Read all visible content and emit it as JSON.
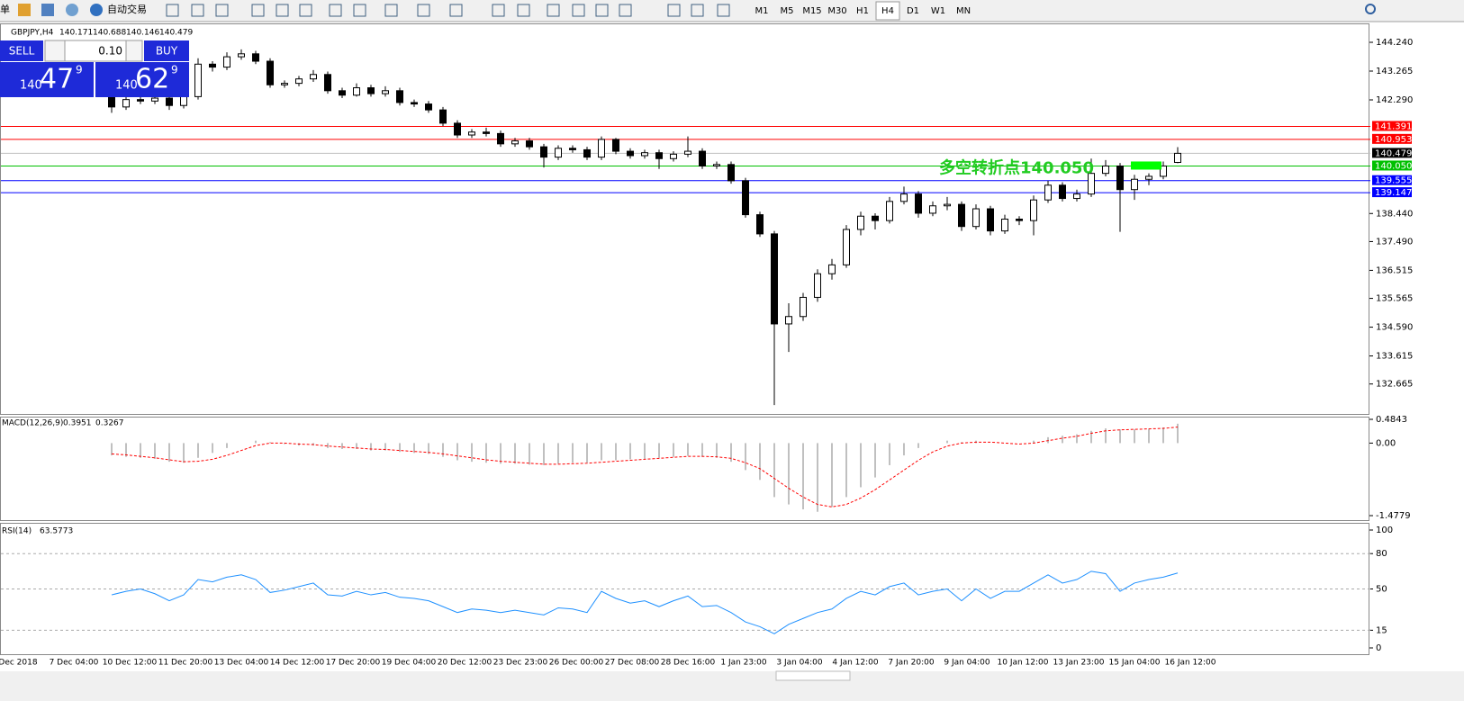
{
  "toolbar": {
    "left_text": "单",
    "auto_trading": "自动交易",
    "timeframes": [
      "M1",
      "M5",
      "M15",
      "M30",
      "H1",
      "H4",
      "D1",
      "W1",
      "MN"
    ],
    "active_timeframe": "H4"
  },
  "trade_panel": {
    "sell": "SELL",
    "lot": "0.10",
    "buy": "BUY",
    "sell_price": {
      "big": "140",
      "main": "47",
      "pip": "9"
    },
    "buy_price": {
      "big": "140",
      "main": "62",
      "pip": "9"
    }
  },
  "chart_data": [
    {
      "type": "candlestick",
      "symbol": "GBPJPY,H4",
      "header_values": [
        140.171,
        140.688,
        140.146,
        140.479
      ],
      "up_color": "#ffffff",
      "down_color": "#000000",
      "ylim": [
        131.65,
        144.82
      ],
      "yticks": [
        {
          "value": 144.24,
          "label": "144.240"
        },
        {
          "value": 143.265,
          "label": "143.265"
        },
        {
          "value": 142.29,
          "label": "142.290"
        },
        {
          "value": 138.44,
          "label": "138.440"
        },
        {
          "value": 137.49,
          "label": "137.490"
        },
        {
          "value": 136.515,
          "label": "136.515"
        },
        {
          "value": 135.565,
          "label": "135.565"
        },
        {
          "value": 134.59,
          "label": "134.590"
        },
        {
          "value": 133.615,
          "label": "133.615"
        },
        {
          "value": 132.665,
          "label": "132.665"
        }
      ],
      "levels": [
        {
          "value": 141.391,
          "color": "#ff0000"
        },
        {
          "value": 140.953,
          "color": "#ff0000"
        },
        {
          "value": 140.479,
          "color": "#c0c0c0",
          "label_color": "#000000"
        },
        {
          "value": 140.05,
          "label": "140.050",
          "color": "#00c000"
        },
        {
          "value": 139.555,
          "color": "#0000ff"
        },
        {
          "value": 139.147,
          "color": "#0000ff"
        }
      ],
      "annotation": "多空转折点140.050",
      "annotation_color": "#22cc22",
      "candles": [
        [
          142.55,
          142.65,
          141.85,
          142.05
        ],
        [
          142.05,
          142.4,
          141.95,
          142.3
        ],
        [
          142.3,
          142.4,
          142.15,
          142.25
        ],
        [
          142.25,
          142.45,
          142.15,
          142.35
        ],
        [
          142.35,
          142.45,
          141.95,
          142.1
        ],
        [
          142.1,
          142.55,
          142,
          142.4
        ],
        [
          142.4,
          143.7,
          142.3,
          143.5
        ],
        [
          143.5,
          143.6,
          143.25,
          143.4
        ],
        [
          143.4,
          143.9,
          143.3,
          143.75
        ],
        [
          143.75,
          144,
          143.65,
          143.85
        ],
        [
          143.85,
          143.95,
          143.5,
          143.6
        ],
        [
          143.6,
          143.7,
          142.7,
          142.8
        ],
        [
          142.8,
          142.95,
          142.7,
          142.85
        ],
        [
          142.85,
          143.1,
          142.75,
          143
        ],
        [
          143,
          143.3,
          142.9,
          143.15
        ],
        [
          143.15,
          143.25,
          142.5,
          142.6
        ],
        [
          142.6,
          142.7,
          142.35,
          142.45
        ],
        [
          142.45,
          142.85,
          142.4,
          142.7
        ],
        [
          142.7,
          142.8,
          142.4,
          142.5
        ],
        [
          142.5,
          142.75,
          142.4,
          142.6
        ],
        [
          142.6,
          142.7,
          142.1,
          142.2
        ],
        [
          142.2,
          142.3,
          142.05,
          142.15
        ],
        [
          142.15,
          142.25,
          141.85,
          141.95
        ],
        [
          141.95,
          142.05,
          141.4,
          141.5
        ],
        [
          141.5,
          141.6,
          141,
          141.1
        ],
        [
          141.1,
          141.3,
          141,
          141.2
        ],
        [
          141.2,
          141.35,
          141.05,
          141.15
        ],
        [
          141.15,
          141.25,
          140.7,
          140.8
        ],
        [
          140.8,
          141,
          140.7,
          140.9
        ],
        [
          140.9,
          141,
          140.6,
          140.7
        ],
        [
          140.7,
          140.8,
          140,
          140.35
        ],
        [
          140.35,
          140.75,
          140.25,
          140.65
        ],
        [
          140.65,
          140.75,
          140.5,
          140.6
        ],
        [
          140.6,
          140.7,
          140.25,
          140.35
        ],
        [
          140.35,
          141.05,
          140.25,
          140.95
        ],
        [
          140.95,
          141,
          140.45,
          140.55
        ],
        [
          140.55,
          140.65,
          140.3,
          140.4
        ],
        [
          140.4,
          140.6,
          140.3,
          140.5
        ],
        [
          140.5,
          140.6,
          139.95,
          140.3
        ],
        [
          140.3,
          140.55,
          140.2,
          140.45
        ],
        [
          140.45,
          141.05,
          140.35,
          140.55
        ],
        [
          140.55,
          140.65,
          139.95,
          140.05
        ],
        [
          140.05,
          140.2,
          139.95,
          140.1
        ],
        [
          140.1,
          140.2,
          139.45,
          139.55
        ],
        [
          139.55,
          139.65,
          138.3,
          138.4
        ],
        [
          138.4,
          138.5,
          137.65,
          137.75
        ],
        [
          137.75,
          137.85,
          131.95,
          134.7
        ],
        [
          134.7,
          135.4,
          133.75,
          134.95
        ],
        [
          134.95,
          135.75,
          134.8,
          135.6
        ],
        [
          135.6,
          136.55,
          135.45,
          136.4
        ],
        [
          136.4,
          136.9,
          136.2,
          136.7
        ],
        [
          136.7,
          138.05,
          136.6,
          137.9
        ],
        [
          137.9,
          138.5,
          137.7,
          138.35
        ],
        [
          138.35,
          138.45,
          137.9,
          138.2
        ],
        [
          138.2,
          139,
          138.1,
          138.85
        ],
        [
          138.85,
          139.35,
          138.75,
          139.1
        ],
        [
          139.1,
          139.2,
          138.3,
          138.45
        ],
        [
          138.45,
          138.85,
          138.35,
          138.7
        ],
        [
          138.7,
          139,
          138.55,
          138.75
        ],
        [
          138.75,
          138.85,
          137.85,
          138
        ],
        [
          138,
          138.75,
          137.9,
          138.6
        ],
        [
          138.6,
          138.7,
          137.7,
          137.85
        ],
        [
          137.85,
          138.4,
          137.75,
          138.25
        ],
        [
          138.25,
          138.35,
          138.05,
          138.2
        ],
        [
          138.2,
          139.05,
          137.7,
          138.9
        ],
        [
          138.9,
          139.55,
          138.8,
          139.4
        ],
        [
          139.4,
          139.5,
          138.85,
          138.95
        ],
        [
          138.95,
          139.25,
          138.85,
          139.1
        ],
        [
          139.1,
          140.3,
          139,
          139.8
        ],
        [
          139.8,
          140.25,
          139.7,
          140.05
        ],
        [
          140.05,
          140.15,
          137.82,
          139.25
        ],
        [
          139.25,
          139.75,
          138.9,
          139.6
        ],
        [
          139.6,
          139.8,
          139.4,
          139.7
        ],
        [
          139.7,
          140.2,
          139.6,
          140.05
        ],
        [
          140.171,
          140.688,
          140.146,
          140.479
        ]
      ],
      "time_labels": [
        "Dec 2018",
        "7 Dec 04:00",
        "10 Dec 12:00",
        "11 Dec 20:00",
        "13 Dec 04:00",
        "14 Dec 12:00",
        "17 Dec 20:00",
        "19 Dec 04:00",
        "20 Dec 12:00",
        "23 Dec 23:00",
        "26 Dec 00:00",
        "27 Dec 08:00",
        "28 Dec 16:00",
        "1 Jan 23:00",
        "3 Jan 04:00",
        "4 Jan 12:00",
        "7 Jan 20:00",
        "9 Jan 04:00",
        "10 Jan 12:00",
        "13 Jan 23:00",
        "15 Jan 04:00",
        "16 Jan 12:00"
      ]
    },
    {
      "type": "macd",
      "title": "MACD(12,26,9)",
      "header_values": [
        0.3951,
        0.3267
      ],
      "ylim": [
        -1.4779,
        0.4843
      ],
      "yticks": [
        0.4843,
        {
          "value": 0,
          "label": "0.00"
        },
        -1.4779
      ],
      "hist_color": "#c0c0c0",
      "signal_color": "#ff0000",
      "histogram": [
        -0.25,
        -0.28,
        -0.3,
        -0.32,
        -0.38,
        -0.4,
        -0.3,
        -0.2,
        -0.1,
        0,
        0.05,
        0.02,
        -0.02,
        -0.05,
        -0.05,
        -0.1,
        -0.12,
        -0.12,
        -0.15,
        -0.15,
        -0.18,
        -0.2,
        -0.22,
        -0.28,
        -0.35,
        -0.38,
        -0.4,
        -0.42,
        -0.42,
        -0.44,
        -0.45,
        -0.42,
        -0.4,
        -0.4,
        -0.35,
        -0.35,
        -0.33,
        -0.32,
        -0.3,
        -0.28,
        -0.26,
        -0.28,
        -0.3,
        -0.38,
        -0.55,
        -0.75,
        -1.1,
        -1.25,
        -1.35,
        -1.4,
        -1.3,
        -1.1,
        -0.9,
        -0.7,
        -0.45,
        -0.25,
        -0.1,
        0,
        0.05,
        0.02,
        0.05,
        0,
        0,
        0,
        0.05,
        0.12,
        0.15,
        0.18,
        0.25,
        0.3,
        0.28,
        0.28,
        0.29,
        0.32,
        0.3951
      ],
      "signal": [
        -0.22,
        -0.24,
        -0.27,
        -0.3,
        -0.34,
        -0.38,
        -0.37,
        -0.33,
        -0.25,
        -0.15,
        -0.05,
        0,
        0,
        -0.02,
        -0.03,
        -0.06,
        -0.08,
        -0.1,
        -0.12,
        -0.13,
        -0.15,
        -0.17,
        -0.19,
        -0.22,
        -0.26,
        -0.3,
        -0.34,
        -0.37,
        -0.39,
        -0.41,
        -0.43,
        -0.43,
        -0.42,
        -0.41,
        -0.39,
        -0.37,
        -0.35,
        -0.33,
        -0.31,
        -0.29,
        -0.27,
        -0.27,
        -0.28,
        -0.31,
        -0.4,
        -0.52,
        -0.72,
        -0.92,
        -1.1,
        -1.25,
        -1.3,
        -1.25,
        -1.12,
        -0.95,
        -0.75,
        -0.55,
        -0.35,
        -0.18,
        -0.06,
        0,
        0.02,
        0.02,
        0,
        -0.02,
        0,
        0.05,
        0.1,
        0.14,
        0.2,
        0.25,
        0.27,
        0.28,
        0.29,
        0.3,
        0.3267
      ]
    },
    {
      "type": "line",
      "title": "RSI(14)",
      "header_value": 63.5773,
      "ylim": [
        0,
        100
      ],
      "yticks": [
        100,
        80,
        50,
        15,
        0
      ],
      "levels": [
        80,
        50,
        15
      ],
      "color": "#1e90ff",
      "values": [
        45,
        48,
        50,
        46,
        40,
        45,
        58,
        56,
        60,
        62,
        58,
        47,
        49,
        52,
        55,
        45,
        44,
        48,
        45,
        47,
        43,
        42,
        40,
        35,
        30,
        33,
        32,
        30,
        32,
        30,
        28,
        34,
        33,
        30,
        48,
        42,
        38,
        40,
        35,
        40,
        44,
        35,
        36,
        30,
        22,
        18,
        12,
        20,
        25,
        30,
        33,
        42,
        48,
        45,
        52,
        55,
        45,
        48,
        50,
        40,
        50,
        42,
        48,
        48,
        55,
        62,
        55,
        58,
        65,
        63,
        48,
        55,
        58,
        60,
        63.5773
      ]
    }
  ]
}
